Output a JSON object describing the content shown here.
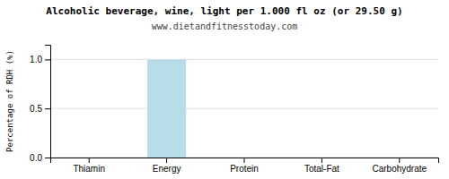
{
  "chart_data": {
    "type": "bar",
    "title": "Alcoholic beverage, wine, light per 1.000 fl oz (or 29.50 g)",
    "subtitle": "www.dietandfitnesstoday.com",
    "categories": [
      "Thiamin",
      "Energy",
      "Protein",
      "Total-Fat",
      "Carbohydrate"
    ],
    "values": [
      0.0,
      1.0,
      0.0,
      0.0,
      0.0
    ],
    "color": "#b8dde8",
    "ylabel": "Percentage of RDH (%)",
    "ylim": [
      0,
      1.15
    ],
    "yticks": [
      {
        "value": 0,
        "label": "0.0"
      },
      0.5,
      {
        "value": 1,
        "label": "1.0"
      }
    ],
    "grid": true
  }
}
